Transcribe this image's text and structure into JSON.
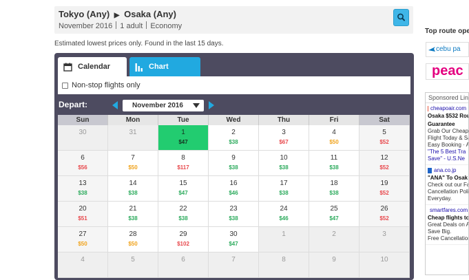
{
  "search": {
    "origin": "Tokyo (Any)",
    "destination": "Osaka (Any)",
    "month": "November 2016",
    "passengers": "1 adult",
    "cabin": "Economy"
  },
  "note": "Estimated lowest prices only. Found in the last 15 days.",
  "tabs": {
    "calendar": "Calendar",
    "chart": "Chart"
  },
  "filter": {
    "nonstop_label": "Non-stop flights only",
    "nonstop_checked": false
  },
  "depart": {
    "label": "Depart:",
    "month_value": "November 2016"
  },
  "weekdays": [
    "Sun",
    "Mon",
    "Tue",
    "Wed",
    "Thu",
    "Fri",
    "Sat"
  ],
  "weeks": [
    [
      {
        "day": "30",
        "price": "",
        "outside": true
      },
      {
        "day": "31",
        "price": "",
        "outside": true
      },
      {
        "day": "1",
        "price": "$47",
        "tone": "green",
        "selected": true
      },
      {
        "day": "2",
        "price": "$38",
        "tone": "green"
      },
      {
        "day": "3",
        "price": "$67",
        "tone": "red"
      },
      {
        "day": "4",
        "price": "$50",
        "tone": "orange"
      },
      {
        "day": "5",
        "price": "$52",
        "tone": "red"
      }
    ],
    [
      {
        "day": "6",
        "price": "$56",
        "tone": "red"
      },
      {
        "day": "7",
        "price": "$50",
        "tone": "orange"
      },
      {
        "day": "8",
        "price": "$117",
        "tone": "red"
      },
      {
        "day": "9",
        "price": "$38",
        "tone": "green"
      },
      {
        "day": "10",
        "price": "$38",
        "tone": "green"
      },
      {
        "day": "11",
        "price": "$38",
        "tone": "green"
      },
      {
        "day": "12",
        "price": "$52",
        "tone": "red"
      }
    ],
    [
      {
        "day": "13",
        "price": "$38",
        "tone": "green"
      },
      {
        "day": "14",
        "price": "$38",
        "tone": "green"
      },
      {
        "day": "15",
        "price": "$47",
        "tone": "green"
      },
      {
        "day": "16",
        "price": "$46",
        "tone": "green"
      },
      {
        "day": "17",
        "price": "$38",
        "tone": "green"
      },
      {
        "day": "18",
        "price": "$38",
        "tone": "green"
      },
      {
        "day": "19",
        "price": "$52",
        "tone": "red"
      }
    ],
    [
      {
        "day": "20",
        "price": "$51",
        "tone": "red"
      },
      {
        "day": "21",
        "price": "$38",
        "tone": "green"
      },
      {
        "day": "22",
        "price": "$38",
        "tone": "green"
      },
      {
        "day": "23",
        "price": "$38",
        "tone": "green"
      },
      {
        "day": "24",
        "price": "$46",
        "tone": "green"
      },
      {
        "day": "25",
        "price": "$47",
        "tone": "green"
      },
      {
        "day": "26",
        "price": "$52",
        "tone": "red"
      }
    ],
    [
      {
        "day": "27",
        "price": "$50",
        "tone": "orange"
      },
      {
        "day": "28",
        "price": "$50",
        "tone": "orange"
      },
      {
        "day": "29",
        "price": "$102",
        "tone": "red"
      },
      {
        "day": "30",
        "price": "$47",
        "tone": "green"
      },
      {
        "day": "1",
        "price": "",
        "outside": true
      },
      {
        "day": "2",
        "price": "",
        "outside": true
      },
      {
        "day": "3",
        "price": "",
        "outside": true
      }
    ],
    [
      {
        "day": "4",
        "price": "",
        "outside": true
      },
      {
        "day": "5",
        "price": "",
        "outside": true
      },
      {
        "day": "6",
        "price": "",
        "outside": true
      },
      {
        "day": "7",
        "price": "",
        "outside": true
      },
      {
        "day": "8",
        "price": "",
        "outside": true
      },
      {
        "day": "9",
        "price": "",
        "outside": true
      },
      {
        "day": "10",
        "price": "",
        "outside": true
      }
    ]
  ],
  "colors": {
    "green": "#2dab5d",
    "orange": "#f0a31c",
    "red": "#e8484c",
    "selected": "#22cc70",
    "accent": "#21a9e0",
    "panel": "#4d4b60"
  },
  "sidebar": {
    "title": "Top route ope",
    "logos": [
      {
        "text": "cebu pa",
        "icon": "plane-icon"
      },
      {
        "text": "peac"
      }
    ],
    "sponsored_label": "Sponsored Lin",
    "ads": [
      {
        "domain": "cheapoair.com",
        "title_lines": [
          "Osaka $532 Rou",
          "Guarantee"
        ],
        "body_lines": [
          "Grab Our Cheape",
          "Flight Today & Sa",
          "Easy Booking · Av"
        ],
        "link_lines": [
          "\"The 5 Best Tra",
          "Save\" - U.S.Ne"
        ]
      },
      {
        "domain": "ana.co.jp",
        "title_lines": [
          "\"ANA\" To Osak"
        ],
        "body_lines": [
          "Check out our Far",
          "Cancellation Polic",
          "Everyday."
        ],
        "link_lines": []
      },
      {
        "domain": "smartfares.com",
        "title_lines": [
          "Cheap flights to"
        ],
        "body_lines": [
          "Great Deals on Air",
          "Save Big.",
          "Free Cancellation"
        ],
        "link_lines": []
      }
    ]
  }
}
